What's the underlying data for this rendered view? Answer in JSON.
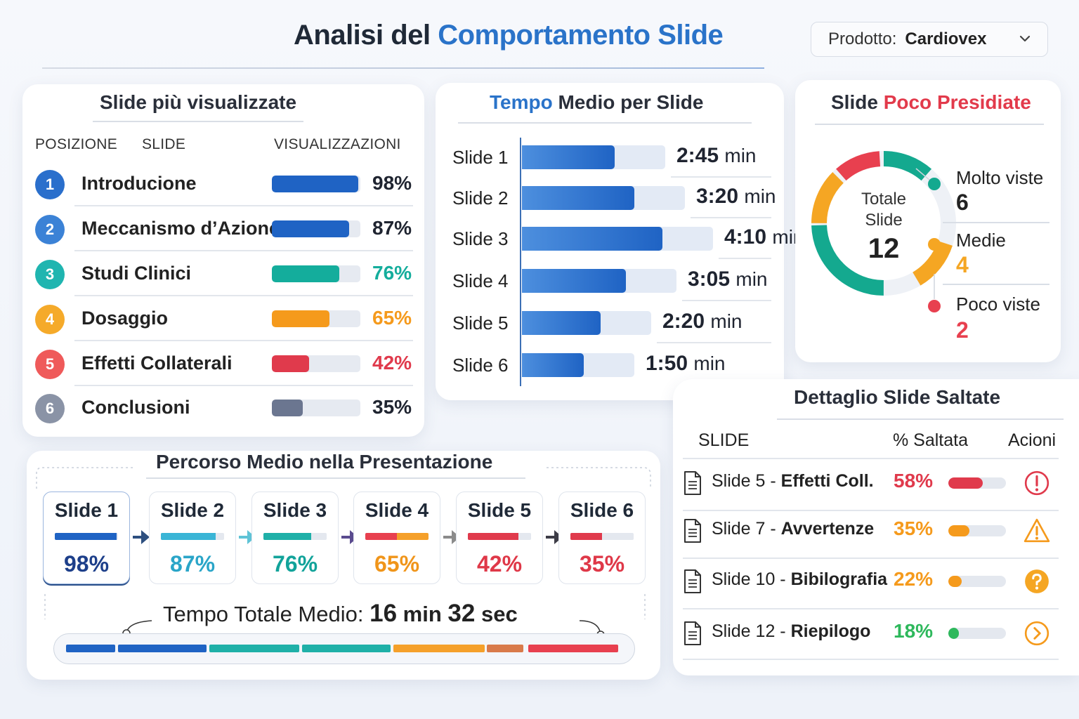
{
  "header": {
    "title_part1": "Analisi del",
    "title_part2": "Comportamento Slide",
    "product_label": "Prodotto:",
    "product_value": "Cardiovex",
    "accent": "#2a73c9"
  },
  "most_viewed": {
    "title": "Slide più visualizzate",
    "col_position": "POSIZIONE",
    "col_slide": "SLIDE",
    "col_views": "VISUALIZZAZIONI",
    "rows": [
      {
        "rank": "1",
        "name": "Introducione",
        "pct_label": "98%",
        "value": 98,
        "color": "#1f63c4",
        "circle": "#2a6fcc"
      },
      {
        "rank": "2",
        "name": "Meccanismo d’Azione",
        "pct_label": "87%",
        "value": 87,
        "color": "#1f63c4",
        "circle": "#3b82d6"
      },
      {
        "rank": "3",
        "name": "Studi Clinici",
        "pct_label": "76%",
        "value": 76,
        "color": "#14ad9c",
        "circle": "#1fb5b0"
      },
      {
        "rank": "4",
        "name": "Dosaggio",
        "pct_label": "65%",
        "value": 65,
        "color": "#f59a1c",
        "circle": "#f5aa2a"
      },
      {
        "rank": "5",
        "name": "Effetti Collaterali",
        "pct_label": "42%",
        "value": 42,
        "color": "#e03a4c",
        "circle": "#ef5a5a"
      },
      {
        "rank": "6",
        "name": "Conclusioni",
        "pct_label": "35%",
        "value": 35,
        "color": "#6b7690",
        "circle": "#8a93a6"
      }
    ]
  },
  "avg_time": {
    "title_part1": "Tempo",
    "title_part2": "Medio per Slide",
    "rows": [
      {
        "label": "Slide 1",
        "time": "2:45",
        "unit": "min",
        "seconds": 165
      },
      {
        "label": "Slide 2",
        "time": "3:20",
        "unit": "min",
        "seconds": 200
      },
      {
        "label": "Slide 3",
        "time": "4:10",
        "unit": "min",
        "seconds": 250
      },
      {
        "label": "Slide 4",
        "time": "3:05",
        "unit": "min",
        "seconds": 185
      },
      {
        "label": "Slide 5",
        "time": "2:20",
        "unit": "min",
        "seconds": 140
      },
      {
        "label": "Slide 6",
        "time": "1:50",
        "unit": "min",
        "seconds": 110
      }
    ]
  },
  "coverage": {
    "title_part1": "Slide",
    "title_part2": "Poco Presidiate",
    "center_line1": "Totale",
    "center_line2": "Slide",
    "total": "12",
    "legend": [
      {
        "label": "Molto viste",
        "count": "6",
        "value": 6,
        "color": "#14a98f"
      },
      {
        "label": "Medie",
        "count": "4",
        "value": 4,
        "color": "#f5a623"
      },
      {
        "label": "Poco viste",
        "count": "2",
        "value": 2,
        "color": "#e8404f"
      }
    ]
  },
  "path": {
    "title": "Percorso Medio nella Presentazione",
    "steps": [
      {
        "label": "Slide 1",
        "pct_label": "98%",
        "value": 98,
        "color": "#1f63c4",
        "text_color": "#1d3f8a"
      },
      {
        "label": "Slide 2",
        "pct_label": "87%",
        "value": 87,
        "color": "#3ab5d6",
        "text_color": "#2aa5c8"
      },
      {
        "label": "Slide 3",
        "pct_label": "76%",
        "value": 76,
        "color": "#1fb0a8",
        "text_color": "#12a39a"
      },
      {
        "label": "Slide 4",
        "pct_label": "65%",
        "value": 65,
        "color": "#f5a02a",
        "text_color": "#f0951a"
      },
      {
        "label": "Slide 5",
        "pct_label": "42%",
        "value": 42,
        "color": "#e03a4c",
        "text_color": "#df3848"
      },
      {
        "label": "Slide 6",
        "pct_label": "35%",
        "value": 35,
        "color": "#e03a4c",
        "text_color": "#df3848"
      }
    ],
    "total_label": "Tempo Totale Medio:",
    "total_min": "16",
    "total_min_unit": "min",
    "total_sec": "32",
    "total_sec_unit": "sec"
  },
  "skipped": {
    "title": "Dettaglio Slide Saltate",
    "col_slide": "SLIDE",
    "col_pct": "% Saltata",
    "col_actions": "Acioni",
    "rows": [
      {
        "prefix": "Slide 5 - ",
        "name": "Effetti Coll.",
        "pct_label": "58%",
        "value": 58,
        "color": "#e03a4c",
        "icon": "error-circle-icon"
      },
      {
        "prefix": "Slide 7 - ",
        "name": "Avvertenze",
        "pct_label": "35%",
        "value": 35,
        "color": "#f59a1c",
        "icon": "warning-triangle-icon"
      },
      {
        "prefix": "Slide 10 - ",
        "name": "Bibilografia",
        "pct_label": "22%",
        "value": 22,
        "color": "#f59a1c",
        "icon": "help-circle-icon"
      },
      {
        "prefix": "Slide 12 - ",
        "name": "Riepilogo",
        "pct_label": "18%",
        "value": 18,
        "color": "#2eb85c",
        "icon": "chevron-right-circle-icon"
      }
    ]
  }
}
